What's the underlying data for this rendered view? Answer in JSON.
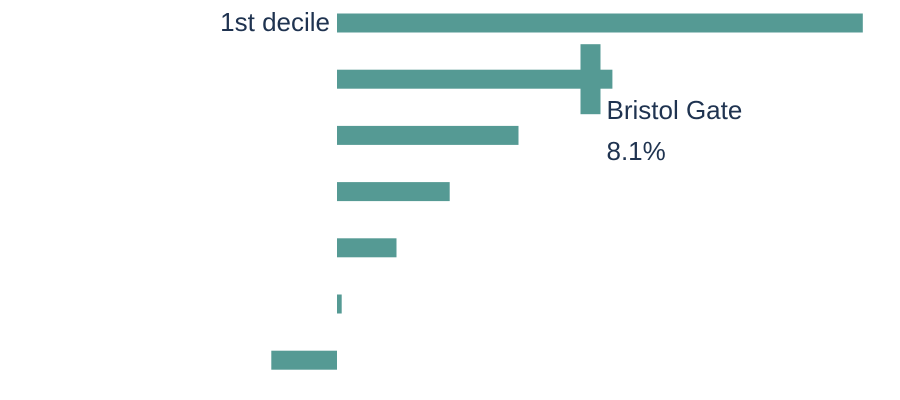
{
  "chart_data": {
    "type": "bar",
    "orientation": "horizontal",
    "categories": [
      "1st decile",
      "",
      "",
      "",
      "",
      "",
      ""
    ],
    "values": [
      16.8,
      8.8,
      5.8,
      3.6,
      1.9,
      0.15,
      -2.1
    ],
    "xlim": [
      -3,
      17
    ],
    "grid": false,
    "legend": "none",
    "bar_color": "#559a94",
    "marker": {
      "label": "Bristol Gate",
      "value_label": "8.1%",
      "value": 8.1,
      "category_index": 1
    }
  }
}
